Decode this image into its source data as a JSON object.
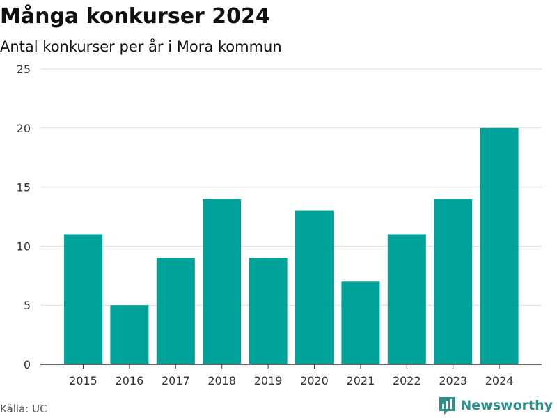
{
  "header": {
    "title": "Många konkurser 2024",
    "subtitle": "Antal konkurser per år i Mora kommun"
  },
  "footer": {
    "source": "Källa: UC",
    "brand": "Newsworthy",
    "brand_icon": "bar-chart-logo-icon"
  },
  "colors": {
    "bar": "#00a39a",
    "brand": "#2e8f8a",
    "grid": "#dddddd",
    "axis": "#333333"
  },
  "chart_data": {
    "type": "bar",
    "title": "Många konkurser 2024",
    "subtitle": "Antal konkurser per år i Mora kommun",
    "categories": [
      "2015",
      "2016",
      "2017",
      "2018",
      "2019",
      "2020",
      "2021",
      "2022",
      "2023",
      "2024"
    ],
    "values": [
      11,
      5,
      9,
      14,
      9,
      13,
      7,
      11,
      14,
      20
    ],
    "yticks": [
      0,
      5,
      10,
      15,
      20,
      25
    ],
    "ylim": [
      0,
      25
    ],
    "xlabel": "",
    "ylabel": "",
    "grid": true,
    "legend": "none"
  }
}
